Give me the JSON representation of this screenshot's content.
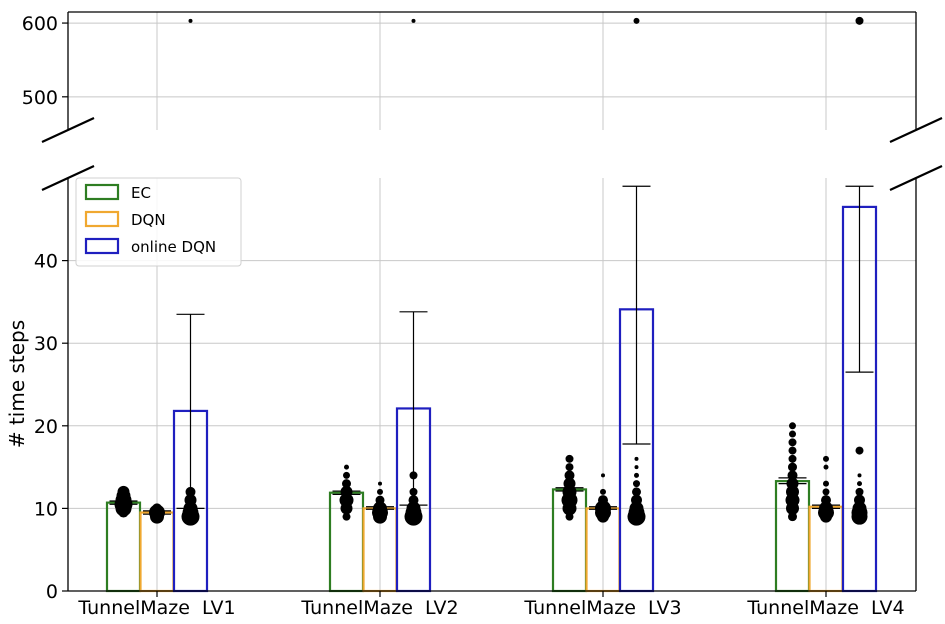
{
  "chart_data": {
    "type": "bar",
    "ylabel": "# time steps",
    "categories": [
      "TunnelMaze  LV1",
      "TunnelMaze  LV2",
      "TunnelMaze  LV3",
      "TunnelMaze  LV4"
    ],
    "broken_axis": {
      "lower_ylim": [
        0,
        50
      ],
      "upper_ylim": [
        455,
        615
      ],
      "lower_ticks": [
        0,
        10,
        20,
        30,
        40
      ],
      "upper_ticks": [
        500,
        600
      ]
    },
    "grid": true,
    "legend_position": "top-left",
    "series": [
      {
        "name": "EC",
        "color": "#2e7d22",
        "values": [
          10.7,
          11.9,
          12.3,
          13.3
        ],
        "err_low": [
          10.5,
          11.7,
          12.1,
          13.0
        ],
        "err_high": [
          10.9,
          12.1,
          12.5,
          13.7
        ]
      },
      {
        "name": "DQN",
        "color": "#f0a830",
        "values": [
          9.5,
          10.0,
          10.0,
          10.2
        ],
        "err_low": [
          9.3,
          9.9,
          9.9,
          10.0
        ],
        "err_high": [
          9.7,
          10.2,
          10.2,
          10.4
        ]
      },
      {
        "name": "online DQN",
        "color": "#1f1fbf",
        "values": [
          21.8,
          22.1,
          34.1,
          46.5
        ],
        "err_low": [
          10.0,
          10.4,
          17.8,
          26.5
        ],
        "err_high": [
          33.5,
          33.8,
          49,
          49
        ]
      }
    ],
    "points": [
      [
        [
          {
            "y": 12,
            "s": 6
          },
          {
            "y": 11.5,
            "s": 7
          },
          {
            "y": 11,
            "s": 8
          },
          {
            "y": 10.5,
            "s": 9
          },
          {
            "y": 10,
            "s": 8
          },
          {
            "y": 9.5,
            "s": 5
          }
        ],
        [
          {
            "y": 10,
            "s": 5
          },
          {
            "y": 9.5,
            "s": 8
          },
          {
            "y": 9,
            "s": 7
          }
        ],
        [
          {
            "y": 12,
            "s": 5
          },
          {
            "y": 11,
            "s": 6
          },
          {
            "y": 10,
            "s": 7
          },
          {
            "y": 9.5,
            "s": 8
          },
          {
            "y": 9,
            "s": 9
          }
        ]
      ],
      [
        [
          {
            "y": 15,
            "s": 2.5
          },
          {
            "y": 14,
            "s": 3.5
          },
          {
            "y": 13,
            "s": 4.5
          },
          {
            "y": 12,
            "s": 6
          },
          {
            "y": 11,
            "s": 7
          },
          {
            "y": 10,
            "s": 6
          },
          {
            "y": 9,
            "s": 4
          }
        ],
        [
          {
            "y": 13,
            "s": 2
          },
          {
            "y": 12,
            "s": 3
          },
          {
            "y": 11,
            "s": 4.5
          },
          {
            "y": 10,
            "s": 7
          },
          {
            "y": 9.5,
            "s": 8
          },
          {
            "y": 9,
            "s": 7
          }
        ],
        [
          {
            "y": 14,
            "s": 4
          },
          {
            "y": 12,
            "s": 4
          },
          {
            "y": 11,
            "s": 5
          },
          {
            "y": 10,
            "s": 7
          },
          {
            "y": 9.5,
            "s": 8
          },
          {
            "y": 9,
            "s": 9
          }
        ]
      ],
      [
        [
          {
            "y": 16,
            "s": 4
          },
          {
            "y": 15,
            "s": 4
          },
          {
            "y": 14,
            "s": 5
          },
          {
            "y": 13,
            "s": 6
          },
          {
            "y": 12,
            "s": 7
          },
          {
            "y": 11,
            "s": 8
          },
          {
            "y": 10,
            "s": 7
          },
          {
            "y": 9,
            "s": 4
          }
        ],
        [
          {
            "y": 14,
            "s": 2
          },
          {
            "y": 12,
            "s": 3
          },
          {
            "y": 11,
            "s": 5
          },
          {
            "y": 10,
            "s": 8
          },
          {
            "y": 9.5,
            "s": 8
          },
          {
            "y": 9,
            "s": 6
          }
        ],
        [
          {
            "y": 16,
            "s": 2
          },
          {
            "y": 15,
            "s": 2
          },
          {
            "y": 14,
            "s": 2.5
          },
          {
            "y": 13,
            "s": 3.5
          },
          {
            "y": 12,
            "s": 4.5
          },
          {
            "y": 11,
            "s": 5.5
          },
          {
            "y": 10,
            "s": 7
          },
          {
            "y": 9.5,
            "s": 8
          },
          {
            "y": 9,
            "s": 9
          }
        ]
      ],
      [
        [
          {
            "y": 20,
            "s": 3.5
          },
          {
            "y": 19,
            "s": 3.5
          },
          {
            "y": 18,
            "s": 4
          },
          {
            "y": 17,
            "s": 4
          },
          {
            "y": 16,
            "s": 4
          },
          {
            "y": 15,
            "s": 4.5
          },
          {
            "y": 14,
            "s": 5
          },
          {
            "y": 13,
            "s": 6
          },
          {
            "y": 12,
            "s": 6.5
          },
          {
            "y": 11,
            "s": 7
          },
          {
            "y": 10,
            "s": 6.5
          },
          {
            "y": 9,
            "s": 4.5
          }
        ],
        [
          {
            "y": 16,
            "s": 3
          },
          {
            "y": 15,
            "s": 2.5
          },
          {
            "y": 13,
            "s": 3
          },
          {
            "y": 12,
            "s": 3.5
          },
          {
            "y": 11,
            "s": 5
          },
          {
            "y": 10,
            "s": 7
          },
          {
            "y": 9.5,
            "s": 8
          },
          {
            "y": 9,
            "s": 6
          }
        ],
        [
          {
            "y": 17,
            "s": 4
          },
          {
            "y": 14,
            "s": 2
          },
          {
            "y": 13,
            "s": 2.5
          },
          {
            "y": 12,
            "s": 4
          },
          {
            "y": 11,
            "s": 5.5
          },
          {
            "y": 10,
            "s": 7
          },
          {
            "y": 9.5,
            "s": 8
          },
          {
            "y": 9,
            "s": 8
          }
        ]
      ]
    ],
    "outliers": [
      [
        {
          "y": 603,
          "s": 2
        },
        {
          "y": 603,
          "s": 2
        },
        {
          "y": 603,
          "s": 3
        },
        {
          "y": 603,
          "s": 4
        }
      ]
    ]
  }
}
